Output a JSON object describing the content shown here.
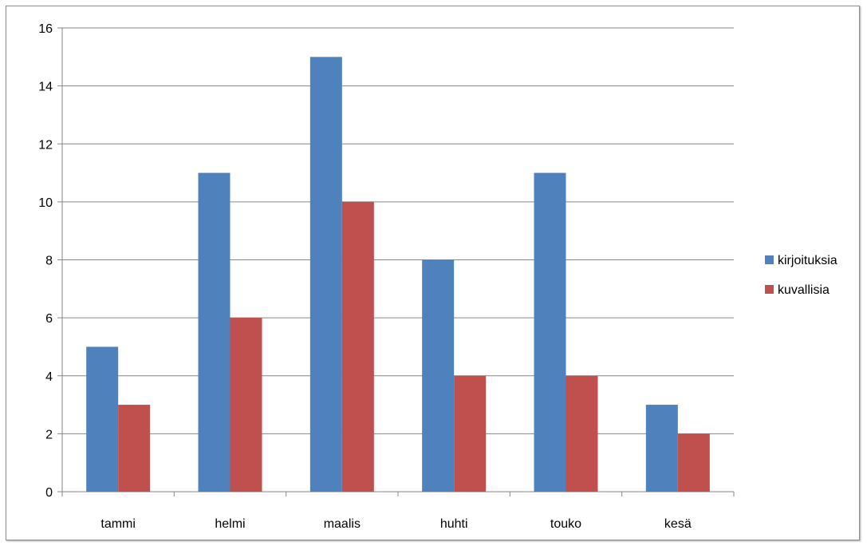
{
  "chart_data": {
    "type": "bar",
    "title": "",
    "xlabel": "",
    "ylabel": "",
    "categories": [
      "tammi",
      "helmi",
      "maalis",
      "huhti",
      "touko",
      "kesä"
    ],
    "series": [
      {
        "name": "kirjoituksia",
        "color": "#4F81BD",
        "values": [
          5,
          11,
          15,
          8,
          11,
          3
        ]
      },
      {
        "name": "kuvallisia",
        "color": "#C0504D",
        "values": [
          3,
          6,
          10,
          4,
          4,
          2
        ]
      }
    ],
    "ylim": [
      0,
      16
    ],
    "yticks": [
      0,
      2,
      4,
      6,
      8,
      10,
      12,
      14,
      16
    ],
    "grid": true,
    "legend_position": "right"
  }
}
